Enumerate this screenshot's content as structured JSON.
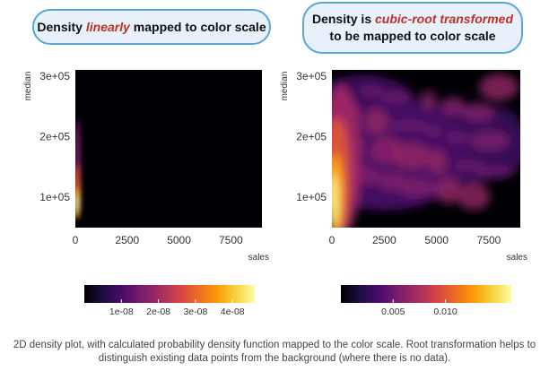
{
  "headings": {
    "left": {
      "pre": "Density ",
      "em": "linearly",
      "post": " mapped to color scale"
    },
    "right": {
      "pre": "Density is ",
      "em": "cubic-root transformed",
      "post": "to be mapped to color scale"
    }
  },
  "caption": "2D density plot, with calculated probability density function mapped to the color scale. Root transformation helps to distinguish existing data points from the background (where there is no data).",
  "colors": {
    "highlight": "#c0302a",
    "bubble_border": "#5aa6d6",
    "bubble_fill": "#e8f1fa",
    "background_density": "#000004"
  },
  "chart_data": [
    {
      "type": "heatmap",
      "xlabel": "sales",
      "ylabel": "median",
      "xticks": [
        0,
        2500,
        5000,
        7500
      ],
      "xtick_labels": [
        "0",
        "2500",
        "5000",
        "7500"
      ],
      "yticks": [
        100000,
        200000,
        300000
      ],
      "ytick_labels": [
        "1e+05",
        "2e+05",
        "3e+05"
      ],
      "xlim": [
        0,
        9000
      ],
      "ylim": [
        50000,
        310000
      ],
      "colorscale": "inferno",
      "color_mapping": "linear",
      "colorbar_ticks": [
        1e-08,
        2e-08,
        3e-08,
        4e-08
      ],
      "colorbar_labels": [
        "1e-08",
        "2e-08",
        "3e-08",
        "4e-08"
      ],
      "colorbar_range": [
        0,
        4.6e-08
      ]
    },
    {
      "type": "heatmap",
      "xlabel": "sales",
      "ylabel": "median",
      "xticks": [
        0,
        2500,
        5000,
        7500
      ],
      "xtick_labels": [
        "0",
        "2500",
        "5000",
        "7500"
      ],
      "yticks": [
        100000,
        200000,
        300000
      ],
      "ytick_labels": [
        "1e+05",
        "2e+05",
        "3e+05"
      ],
      "xlim": [
        0,
        9000
      ],
      "ylim": [
        50000,
        310000
      ],
      "colorscale": "inferno",
      "color_mapping": "cubic-root",
      "colorbar_ticks": [
        0.005,
        0.01
      ],
      "colorbar_labels": [
        "0.005",
        "0.010"
      ],
      "colorbar_range": [
        0,
        0.0163
      ]
    }
  ]
}
